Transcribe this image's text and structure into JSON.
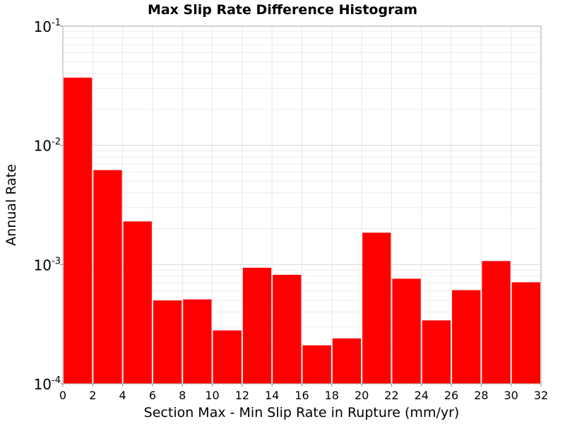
{
  "chart_data": {
    "type": "bar",
    "title": "Max Slip Rate Difference Histogram",
    "xlabel": "Section Max - Min Slip Rate in Rupture (mm/yr)",
    "ylabel": "Annual Rate",
    "xlim": [
      0,
      32
    ],
    "ylim": [
      0.0001,
      0.1
    ],
    "yscale": "log",
    "grid": true,
    "legend": "none",
    "bar_color": "#ff0000",
    "x_ticks": [
      {
        "value": 0,
        "label": "0"
      },
      {
        "value": 2,
        "label": "2"
      },
      {
        "value": 4,
        "label": "4"
      },
      {
        "value": 6,
        "label": "6"
      },
      {
        "value": 8,
        "label": "8"
      },
      {
        "value": 10,
        "label": "10"
      },
      {
        "value": 12,
        "label": "12"
      },
      {
        "value": 14,
        "label": "14"
      },
      {
        "value": 16,
        "label": "16"
      },
      {
        "value": 18,
        "label": "18"
      },
      {
        "value": 20,
        "label": "20"
      },
      {
        "value": 22,
        "label": "22"
      },
      {
        "value": 24,
        "label": "24"
      },
      {
        "value": 26,
        "label": "26"
      },
      {
        "value": 28,
        "label": "28"
      },
      {
        "value": 30,
        "label": "30"
      },
      {
        "value": 32,
        "label": "32"
      }
    ],
    "y_ticks": [
      {
        "value": 0.0001,
        "base": "10",
        "exp": "-4"
      },
      {
        "value": 0.001,
        "base": "10",
        "exp": "-3"
      },
      {
        "value": 0.01,
        "base": "10",
        "exp": "-2"
      },
      {
        "value": 0.1,
        "base": "10",
        "exp": "-1"
      }
    ],
    "bins": [
      {
        "x_start": 0,
        "x_end": 2,
        "value": 0.037
      },
      {
        "x_start": 2,
        "x_end": 4,
        "value": 0.0062
      },
      {
        "x_start": 4,
        "x_end": 6,
        "value": 0.0023
      },
      {
        "x_start": 6,
        "x_end": 8,
        "value": 0.0005
      },
      {
        "x_start": 8,
        "x_end": 10,
        "value": 0.00051
      },
      {
        "x_start": 10,
        "x_end": 12,
        "value": 0.00028
      },
      {
        "x_start": 12,
        "x_end": 14,
        "value": 0.00094
      },
      {
        "x_start": 14,
        "x_end": 16,
        "value": 0.00082
      },
      {
        "x_start": 16,
        "x_end": 18,
        "value": 0.00021
      },
      {
        "x_start": 18,
        "x_end": 20,
        "value": 0.00024
      },
      {
        "x_start": 20,
        "x_end": 22,
        "value": 0.00185
      },
      {
        "x_start": 22,
        "x_end": 24,
        "value": 0.00076
      },
      {
        "x_start": 24,
        "x_end": 26,
        "value": 0.00034
      },
      {
        "x_start": 26,
        "x_end": 28,
        "value": 0.00061
      },
      {
        "x_start": 28,
        "x_end": 30,
        "value": 0.00107
      },
      {
        "x_start": 30,
        "x_end": 32,
        "value": 0.00071
      }
    ]
  }
}
